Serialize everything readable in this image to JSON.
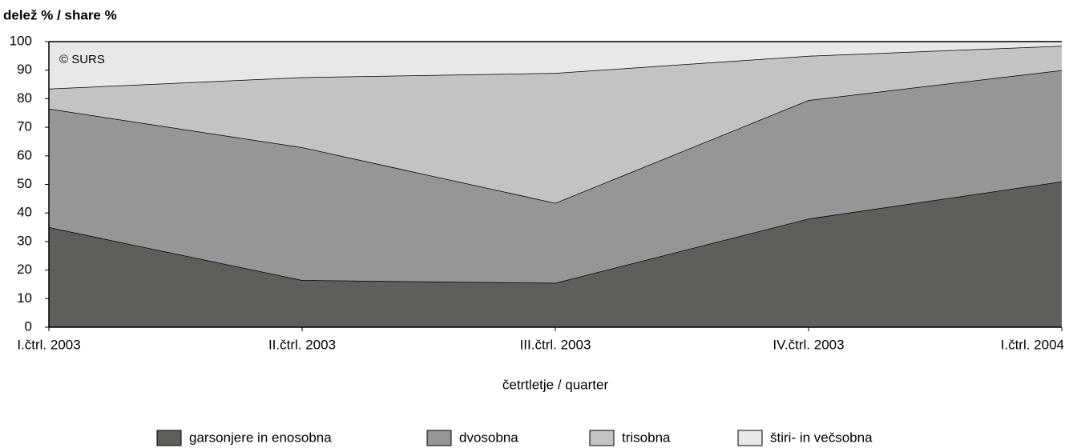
{
  "chart_data": {
    "type": "stacked_area",
    "title": "delež % / share %",
    "annotation": "© SURS",
    "x_label": "četrtletje / quarter",
    "categories": [
      "I.čtrl. 2003",
      "II.čtrl. 2003",
      "III.čtrl. 2003",
      "IV.čtrl. 2003",
      "I.čtrl. 2004"
    ],
    "series": [
      {
        "name": "garsonjere in enosobna",
        "color": "#5f5e5b",
        "values": [
          35,
          16.5,
          15.5,
          38,
          51
        ]
      },
      {
        "name": "dvosobna",
        "color": "#969696",
        "values": [
          41.5,
          46.5,
          28,
          41.5,
          39
        ]
      },
      {
        "name": "trisobna",
        "color": "#c3c3c3",
        "values": [
          7,
          24.5,
          45.5,
          15.5,
          8.5
        ]
      },
      {
        "name": "štiri- in večsobna",
        "color": "#e8e8e8",
        "values": [
          16.5,
          12.5,
          11,
          5,
          1.5
        ]
      }
    ],
    "ylim": [
      0,
      100
    ],
    "yticks": [
      0,
      10,
      20,
      30,
      40,
      50,
      60,
      70,
      80,
      90,
      100
    ],
    "legend": "bottom"
  }
}
